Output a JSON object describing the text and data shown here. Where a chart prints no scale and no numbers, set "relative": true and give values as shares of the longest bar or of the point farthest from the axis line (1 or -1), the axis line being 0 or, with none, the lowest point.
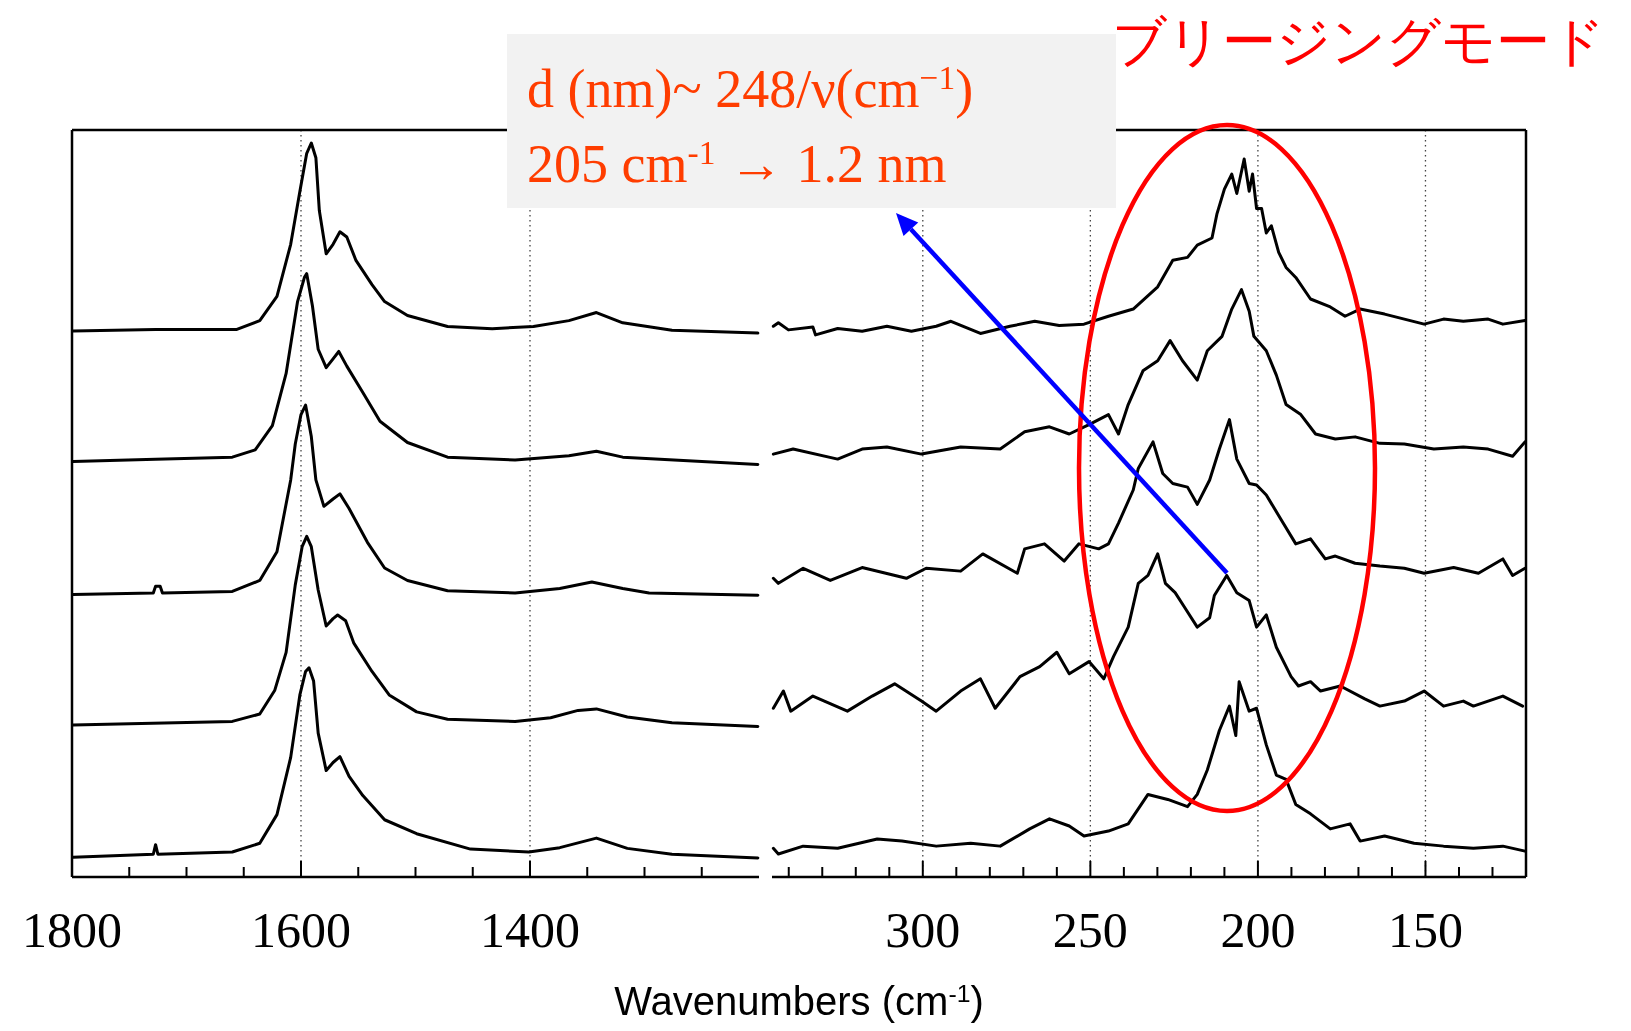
{
  "chart_data": [
    {
      "type": "line",
      "xlabel": "Wavenumbers (cm$^{-1}$)",
      "relative": true,
      "grid": "x",
      "xlim": [
        1800,
        1200
      ],
      "xticks": [
        1800,
        {
          "value": 1750,
          "label": null
        },
        {
          "value": 1700,
          "label": null
        },
        {
          "value": 1650,
          "label": null
        },
        1600,
        {
          "value": 1550,
          "label": null
        },
        {
          "value": 1500,
          "label": null
        },
        {
          "value": 1450,
          "label": null
        },
        1400,
        {
          "value": 1350,
          "label": null
        },
        {
          "value": 1300,
          "label": null
        },
        {
          "value": 1250,
          "label": null
        }
      ],
      "series": [
        {
          "color": "#000000",
          "x": [
            1799,
            1727,
            1656,
            1636,
            1621,
            1609,
            1601,
            1595,
            1591,
            1587,
            1584,
            1578,
            1572,
            1566,
            1560,
            1552,
            1538,
            1527,
            1507,
            1472,
            1433,
            1397,
            1366,
            1342,
            1319,
            1276,
            1201
          ],
          "values": [
            0.744,
            0.746,
            0.746,
            0.758,
            0.791,
            0.862,
            0.934,
            0.986,
            1.0,
            0.98,
            0.908,
            0.849,
            0.862,
            0.879,
            0.872,
            0.84,
            0.807,
            0.784,
            0.765,
            0.75,
            0.747,
            0.75,
            0.758,
            0.769,
            0.755,
            0.745,
            0.741
          ]
        },
        {
          "color": "#000000",
          "x": [
            1799,
            1727,
            1660,
            1640,
            1625,
            1613,
            1603,
            1597,
            1595,
            1590,
            1585,
            1578,
            1572,
            1567,
            1560,
            1546,
            1531,
            1507,
            1472,
            1413,
            1366,
            1342,
            1319,
            1201
          ],
          "values": [
            0.566,
            0.569,
            0.572,
            0.582,
            0.615,
            0.686,
            0.784,
            0.817,
            0.822,
            0.778,
            0.719,
            0.694,
            0.706,
            0.716,
            0.696,
            0.66,
            0.621,
            0.592,
            0.572,
            0.568,
            0.574,
            0.58,
            0.572,
            0.562
          ]
        },
        {
          "color": "#000000",
          "x": [
            1799,
            1729,
            1727,
            1723,
            1721,
            1660,
            1636,
            1621,
            1609,
            1605,
            1600,
            1596,
            1591,
            1587,
            1580,
            1572,
            1566,
            1558,
            1542,
            1527,
            1507,
            1472,
            1413,
            1374,
            1346,
            1319,
            1296,
            1201
          ],
          "values": [
            0.385,
            0.387,
            0.396,
            0.396,
            0.387,
            0.389,
            0.404,
            0.443,
            0.541,
            0.59,
            0.63,
            0.643,
            0.6,
            0.541,
            0.505,
            0.515,
            0.522,
            0.502,
            0.456,
            0.421,
            0.404,
            0.39,
            0.387,
            0.393,
            0.402,
            0.393,
            0.387,
            0.384
          ]
        },
        {
          "color": "#000000",
          "x": [
            1799,
            1660,
            1636,
            1623,
            1613,
            1605,
            1599,
            1595,
            1591,
            1585,
            1578,
            1572,
            1568,
            1561,
            1554,
            1538,
            1523,
            1499,
            1472,
            1413,
            1382,
            1358,
            1342,
            1315,
            1276,
            1201
          ],
          "values": [
            0.207,
            0.212,
            0.222,
            0.254,
            0.306,
            0.398,
            0.45,
            0.464,
            0.45,
            0.391,
            0.342,
            0.352,
            0.357,
            0.349,
            0.319,
            0.28,
            0.248,
            0.225,
            0.215,
            0.212,
            0.217,
            0.227,
            0.229,
            0.218,
            0.21,
            0.205
          ]
        },
        {
          "color": "#000000",
          "x": [
            1799,
            1729,
            1727,
            1725,
            1660,
            1636,
            1621,
            1609,
            1601,
            1596,
            1593,
            1589,
            1585,
            1578,
            1572,
            1566,
            1558,
            1546,
            1527,
            1499,
            1452,
            1401,
            1374,
            1342,
            1315,
            1276,
            1201
          ],
          "values": [
            0.027,
            0.031,
            0.044,
            0.031,
            0.034,
            0.046,
            0.085,
            0.163,
            0.248,
            0.28,
            0.285,
            0.267,
            0.196,
            0.145,
            0.156,
            0.164,
            0.137,
            0.111,
            0.078,
            0.059,
            0.038,
            0.034,
            0.04,
            0.053,
            0.039,
            0.031,
            0.026
          ]
        }
      ]
    },
    {
      "type": "line",
      "relative": true,
      "grid": "x",
      "xlim": [
        345,
        120
      ],
      "xticks": [
        {
          "value": 340,
          "label": null
        },
        {
          "value": 330,
          "label": null
        },
        {
          "value": 320,
          "label": null
        },
        {
          "value": 310,
          "label": null
        },
        300,
        {
          "value": 290,
          "label": null
        },
        {
          "value": 280,
          "label": null
        },
        {
          "value": 270,
          "label": null
        },
        {
          "value": 260,
          "label": null
        },
        250,
        {
          "value": 240,
          "label": null
        },
        {
          "value": 230,
          "label": null
        },
        {
          "value": 220,
          "label": null
        },
        {
          "value": 210,
          "label": null
        },
        200,
        {
          "value": 190,
          "label": null
        },
        {
          "value": 180,
          "label": null
        },
        {
          "value": 170,
          "label": null
        },
        {
          "value": 160,
          "label": null
        },
        150,
        {
          "value": 140,
          "label": null
        },
        {
          "value": 130,
          "label": null
        }
      ],
      "annotations": [
        "d (nm)~ 248/ν(cm$^{−1}$)",
        "205 cm$^{-1}$ → 1.2 nm",
        "ブリージングモード"
      ],
      "series": [
        {
          "color": "#000000",
          "x": [
            344.6,
            343.1,
            340.1,
            332.8,
            332,
            325.4,
            318.1,
            310.7,
            303.4,
            296,
            291.6,
            282.8,
            274,
            266.6,
            259.3,
            251.9,
            244.6,
            237.2,
            229.9,
            225.4,
            221,
            218.1,
            213.7,
            212.2,
            210,
            207.8,
            206.3,
            204.1,
            202.6,
            201.6,
            200.4,
            198.9,
            197.5,
            196,
            193.8,
            191.6,
            188.7,
            184.3,
            178.4,
            174,
            169.5,
            162.2,
            156.3,
            150.4,
            144.6,
            138.7,
            131.3,
            126.9,
            120.3
          ],
          "values": [
            0.767,
            0.772,
            0.762,
            0.766,
            0.755,
            0.764,
            0.76,
            0.767,
            0.76,
            0.767,
            0.774,
            0.757,
            0.767,
            0.774,
            0.768,
            0.77,
            0.781,
            0.791,
            0.822,
            0.859,
            0.863,
            0.88,
            0.89,
            0.924,
            0.958,
            0.979,
            0.952,
            1.0,
            0.955,
            0.979,
            0.931,
            0.931,
            0.897,
            0.907,
            0.87,
            0.849,
            0.835,
            0.805,
            0.794,
            0.781,
            0.791,
            0.784,
            0.777,
            0.77,
            0.777,
            0.774,
            0.777,
            0.77,
            0.775
          ]
        },
        {
          "color": "#000000",
          "x": [
            344.6,
            338.7,
            325.4,
            318.1,
            310.7,
            300.4,
            288.7,
            276.9,
            269.6,
            262.2,
            256.3,
            250.4,
            244.6,
            241.6,
            238.7,
            234.3,
            229.9,
            226.2,
            222.5,
            218.1,
            215.1,
            210.7,
            207.8,
            204.9,
            202.6,
            201.2,
            197.5,
            194.5,
            191.6,
            187.2,
            182.8,
            176.9,
            171,
            163.6,
            156.3,
            147.5,
            138.7,
            131.3,
            124,
            120.3
          ],
          "values": [
            0.589,
            0.596,
            0.582,
            0.596,
            0.599,
            0.589,
            0.599,
            0.596,
            0.62,
            0.627,
            0.617,
            0.63,
            0.644,
            0.617,
            0.658,
            0.705,
            0.719,
            0.747,
            0.719,
            0.692,
            0.733,
            0.753,
            0.791,
            0.818,
            0.788,
            0.753,
            0.733,
            0.699,
            0.658,
            0.644,
            0.617,
            0.61,
            0.613,
            0.604,
            0.603,
            0.596,
            0.599,
            0.596,
            0.586,
            0.606
          ]
        },
        {
          "color": "#000000",
          "x": [
            344.6,
            343.1,
            335.7,
            327.6,
            318.1,
            304.9,
            299,
            288.7,
            282.1,
            271.8,
            269.6,
            263.7,
            257.8,
            253.4,
            247.5,
            244.6,
            241.6,
            237.2,
            235.7,
            231.3,
            228.4,
            225.4,
            221,
            218.1,
            214.4,
            211.5,
            208.5,
            206.3,
            202.6,
            200.4,
            197.5,
            193.1,
            188.7,
            184.3,
            179.9,
            176.9,
            171,
            163.6,
            156.3,
            150.4,
            141.6,
            134.2,
            126.9,
            124,
            120.3
          ],
          "values": [
            0.416,
            0.409,
            0.43,
            0.413,
            0.431,
            0.416,
            0.43,
            0.426,
            0.45,
            0.423,
            0.457,
            0.464,
            0.44,
            0.464,
            0.457,
            0.464,
            0.493,
            0.539,
            0.569,
            0.606,
            0.562,
            0.548,
            0.543,
            0.519,
            0.553,
            0.596,
            0.637,
            0.582,
            0.548,
            0.546,
            0.532,
            0.498,
            0.464,
            0.471,
            0.443,
            0.447,
            0.437,
            0.433,
            0.43,
            0.423,
            0.431,
            0.423,
            0.443,
            0.42,
            0.43
          ]
        },
        {
          "color": "#000000",
          "x": [
            344.6,
            341.6,
            339.4,
            332.8,
            322.5,
            315.1,
            308.4,
            300.4,
            296,
            288.7,
            282.8,
            278.4,
            271,
            265.1,
            260,
            256.3,
            250.4,
            246,
            243.1,
            238.7,
            235.7,
            232.8,
            229.9,
            227.6,
            224.7,
            221.8,
            218.1,
            214.4,
            213,
            209.3,
            206.3,
            202.6,
            200.4,
            197.5,
            194.5,
            190.1,
            187.9,
            184.3,
            181.3,
            175.4,
            168.1,
            163.6,
            156.3,
            150.4,
            144.6,
            138.7,
            135.7,
            126.9,
            121
          ],
          "values": [
            0.235,
            0.259,
            0.231,
            0.252,
            0.231,
            0.252,
            0.269,
            0.245,
            0.231,
            0.259,
            0.276,
            0.235,
            0.279,
            0.293,
            0.313,
            0.283,
            0.3,
            0.276,
            0.307,
            0.348,
            0.409,
            0.42,
            0.45,
            0.409,
            0.396,
            0.375,
            0.348,
            0.361,
            0.392,
            0.42,
            0.396,
            0.385,
            0.348,
            0.365,
            0.32,
            0.279,
            0.266,
            0.272,
            0.259,
            0.266,
            0.248,
            0.238,
            0.245,
            0.259,
            0.238,
            0.245,
            0.238,
            0.252,
            0.238
          ]
        },
        {
          "color": "#000000",
          "x": [
            344.6,
            343.1,
            335.7,
            325.4,
            313.6,
            306.2,
            296,
            285.7,
            276.9,
            268.1,
            262.2,
            256.3,
            251.9,
            244.6,
            238.7,
            232.8,
            226.9,
            221,
            218.1,
            215.1,
            211.5,
            208.5,
            206.6,
            205.6,
            202.6,
            200.4,
            197.5,
            194.5,
            191.6,
            188.7,
            184.3,
            178.4,
            172.5,
            169.5,
            162.2,
            153.4,
            144.6,
            135.7,
            126.9,
            120.3
          ],
          "values": [
            0.04,
            0.032,
            0.043,
            0.04,
            0.053,
            0.05,
            0.043,
            0.047,
            0.043,
            0.067,
            0.081,
            0.071,
            0.057,
            0.064,
            0.074,
            0.115,
            0.108,
            0.098,
            0.115,
            0.149,
            0.204,
            0.238,
            0.197,
            0.272,
            0.231,
            0.235,
            0.184,
            0.142,
            0.136,
            0.101,
            0.088,
            0.067,
            0.074,
            0.05,
            0.057,
            0.047,
            0.043,
            0.04,
            0.043,
            0.036
          ]
        }
      ]
    }
  ]
}
